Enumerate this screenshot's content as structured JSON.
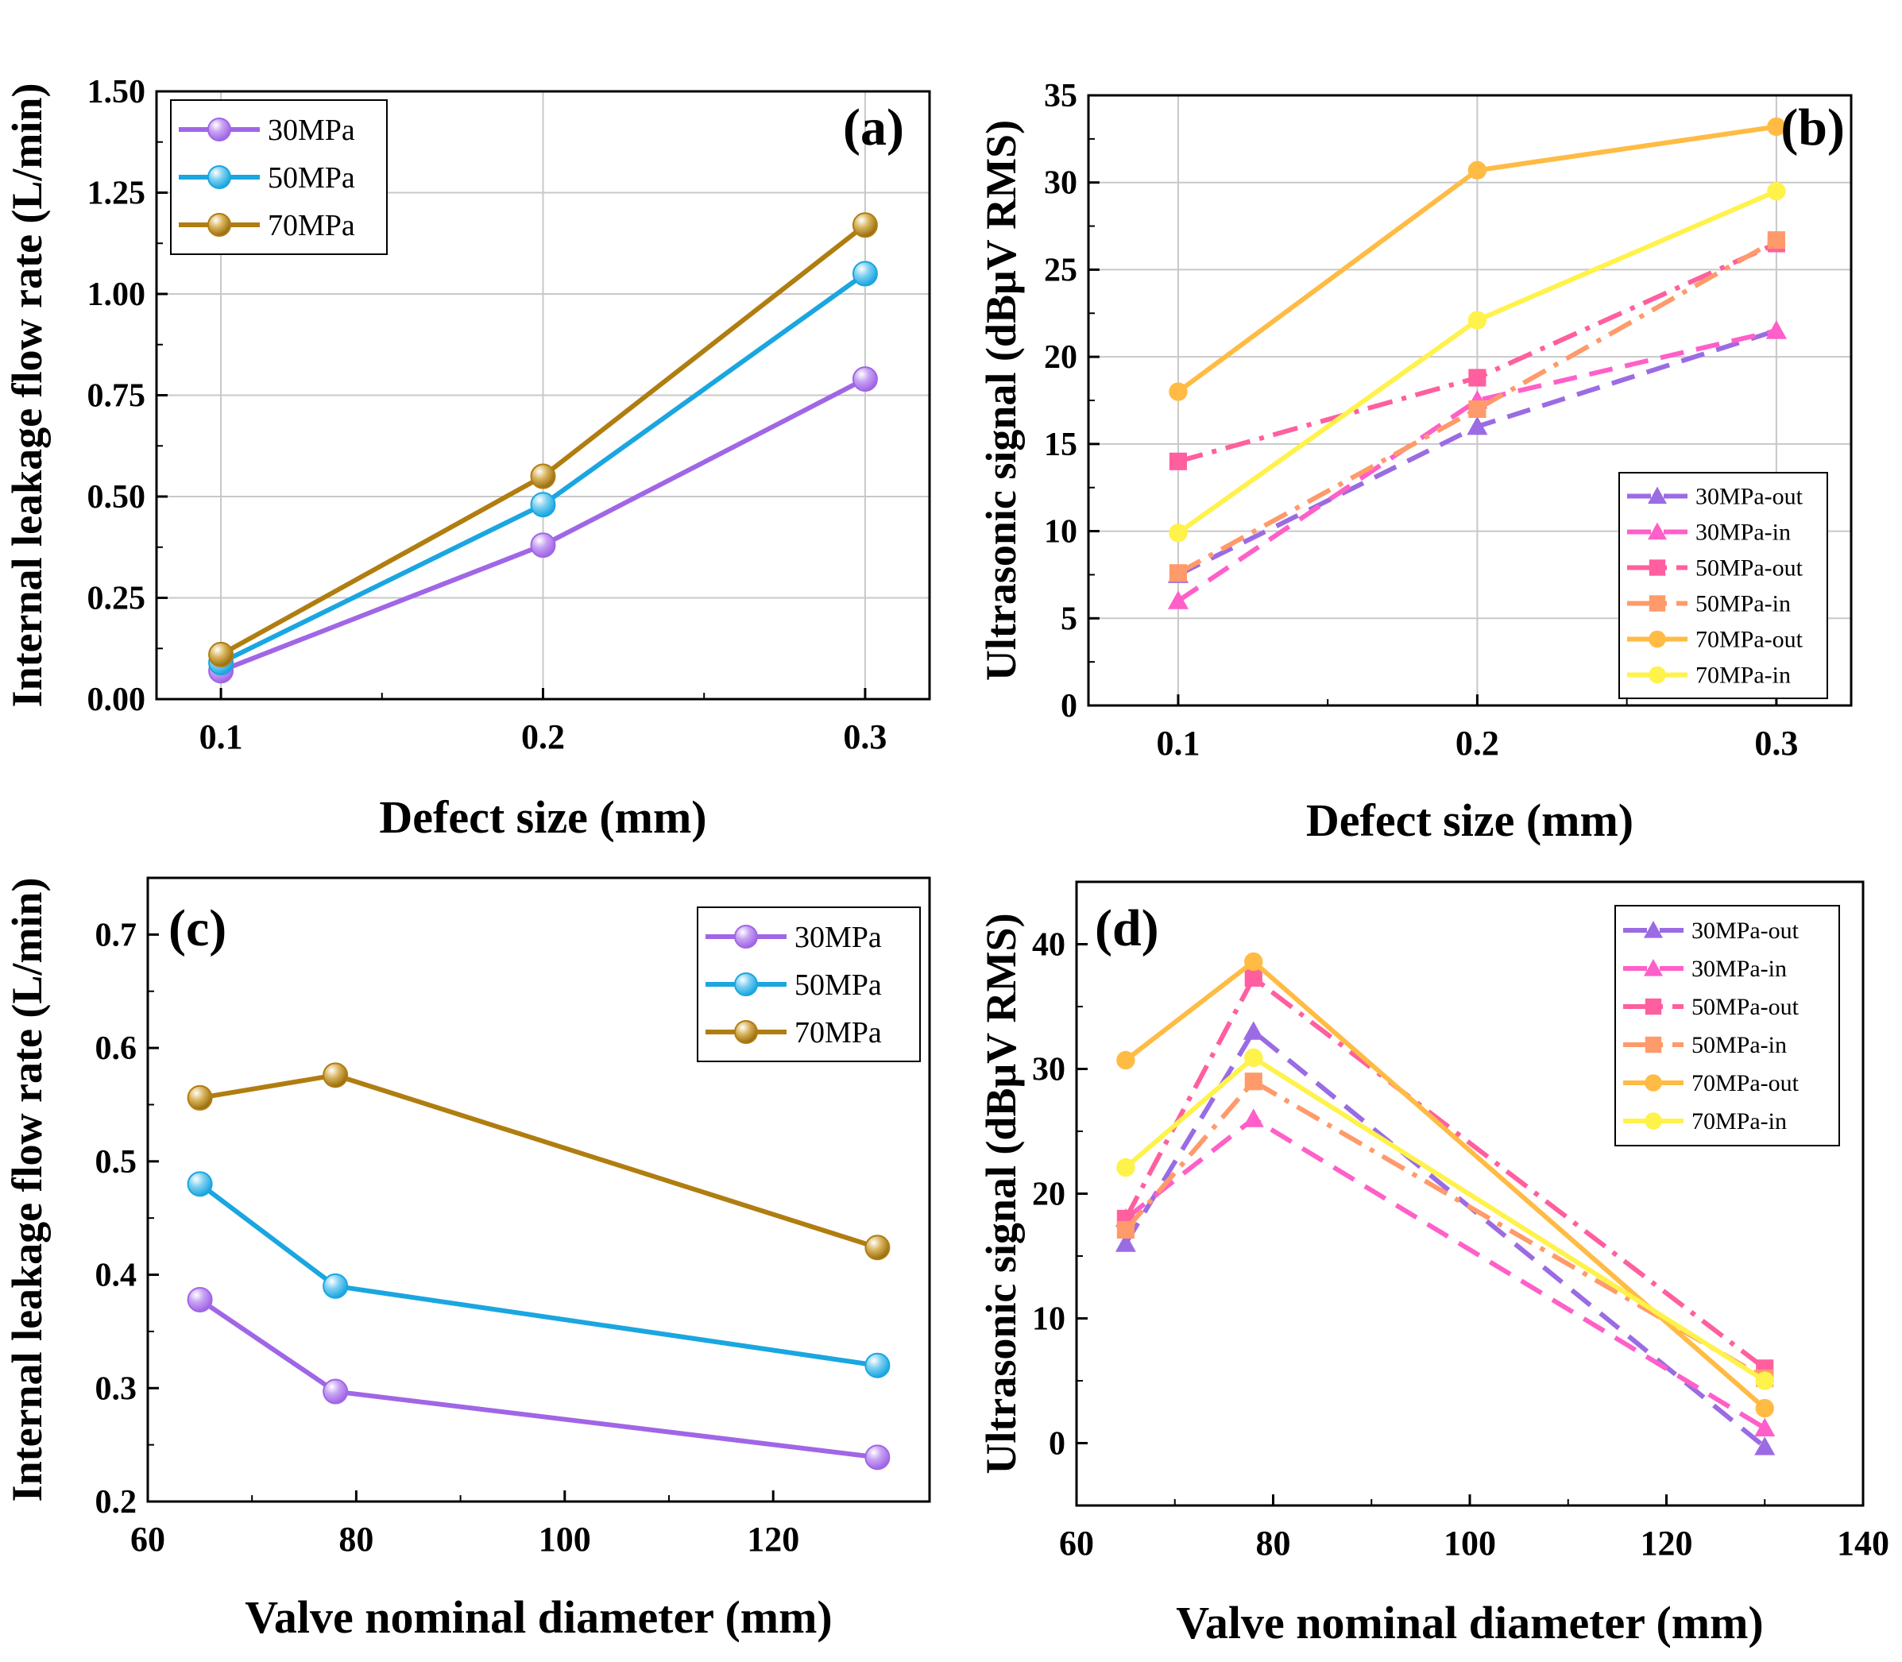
{
  "chart_data": [
    {
      "id": "a",
      "type": "line",
      "panel_label": "(a)",
      "title": "",
      "xlabel": "Defect size (mm)",
      "ylabel": "Internal leakage flow rate (L/min)",
      "x": [
        0.1,
        0.2,
        0.3
      ],
      "xlim": [
        0.08,
        0.32
      ],
      "ylim": [
        0.0,
        1.5
      ],
      "xticks": [
        0.1,
        0.2,
        0.3
      ],
      "xtick_labels": [
        "0.1",
        "0.2",
        "0.3"
      ],
      "yticks": [
        0.0,
        0.25,
        0.5,
        0.75,
        1.0,
        1.25,
        1.5
      ],
      "ytick_labels": [
        "0.00",
        "0.25",
        "0.50",
        "0.75",
        "1.00",
        "1.25",
        "1.50"
      ],
      "grid": true,
      "legend_position": "top-left",
      "series": [
        {
          "name": "30MPa",
          "values": [
            0.07,
            0.38,
            0.79
          ],
          "color": "#a066e6",
          "marker": "sphere",
          "dash": "solid"
        },
        {
          "name": "50MPa",
          "values": [
            0.09,
            0.48,
            1.05
          ],
          "color": "#1aa6e0",
          "marker": "sphere",
          "dash": "solid"
        },
        {
          "name": "70MPa",
          "values": [
            0.11,
            0.55,
            1.17
          ],
          "color": "#b07d10",
          "marker": "sphere",
          "dash": "solid"
        }
      ]
    },
    {
      "id": "b",
      "type": "line",
      "panel_label": "(b)",
      "title": "",
      "xlabel": "Defect size (mm)",
      "ylabel": "Ultrasonic signal (dBμV RMS)",
      "x": [
        0.1,
        0.2,
        0.3
      ],
      "xlim": [
        0.07,
        0.325
      ],
      "ylim": [
        0,
        35
      ],
      "xticks": [
        0.1,
        0.2,
        0.3
      ],
      "xtick_labels": [
        "0.1",
        "0.2",
        "0.3"
      ],
      "yticks": [
        0,
        5,
        10,
        15,
        20,
        25,
        30,
        35
      ],
      "ytick_labels": [
        "0",
        "5",
        "10",
        "15",
        "20",
        "25",
        "30",
        "35"
      ],
      "grid": true,
      "legend_position": "bottom-right",
      "series": [
        {
          "name": "30MPa-out",
          "values": [
            7.5,
            16.0,
            21.5
          ],
          "color": "#9b6be3",
          "marker": "triangle",
          "dash": "dash"
        },
        {
          "name": "30MPa-in",
          "values": [
            6.0,
            17.5,
            21.5
          ],
          "color": "#ff5fc8",
          "marker": "triangle",
          "dash": "dash"
        },
        {
          "name": "50MPa-out",
          "values": [
            14.0,
            18.8,
            26.5
          ],
          "color": "#ff5f9e",
          "marker": "square",
          "dash": "dashdot"
        },
        {
          "name": "50MPa-in",
          "values": [
            7.6,
            17.0,
            26.7
          ],
          "color": "#ff9a6a",
          "marker": "square",
          "dash": "dashdot"
        },
        {
          "name": "70MPa-out",
          "values": [
            18.0,
            30.7,
            33.2
          ],
          "color": "#ffbb44",
          "marker": "circle",
          "dash": "solid"
        },
        {
          "name": "70MPa-in",
          "values": [
            9.9,
            22.1,
            29.5
          ],
          "color": "#fff24a",
          "marker": "circle",
          "dash": "solid"
        }
      ]
    },
    {
      "id": "c",
      "type": "line",
      "panel_label": "(c)",
      "title": "",
      "xlabel": "Valve nominal diameter (mm)",
      "ylabel": "Internal leakage flow rate (L/min)",
      "x": [
        65,
        78,
        130
      ],
      "xlim": [
        60,
        135
      ],
      "ylim": [
        0.2,
        0.75
      ],
      "xticks": [
        60,
        80,
        100,
        120
      ],
      "xtick_labels": [
        "60",
        "80",
        "100",
        "120"
      ],
      "yticks": [
        0.2,
        0.3,
        0.4,
        0.5,
        0.6,
        0.7
      ],
      "ytick_labels": [
        "0.2",
        "0.3",
        "0.4",
        "0.5",
        "0.6",
        "0.7"
      ],
      "grid": false,
      "legend_position": "top-right",
      "series": [
        {
          "name": "30MPa",
          "values": [
            0.378,
            0.297,
            0.239
          ],
          "color": "#a066e6",
          "marker": "sphere",
          "dash": "solid"
        },
        {
          "name": "50MPa",
          "values": [
            0.48,
            0.39,
            0.32
          ],
          "color": "#1aa6e0",
          "marker": "sphere",
          "dash": "solid"
        },
        {
          "name": "70MPa",
          "values": [
            0.556,
            0.576,
            0.424
          ],
          "color": "#b07d10",
          "marker": "sphere",
          "dash": "solid"
        }
      ]
    },
    {
      "id": "d",
      "type": "line",
      "panel_label": "(d)",
      "title": "",
      "xlabel": "Valve nominal diameter (mm)",
      "ylabel": "Ultrasonic signal (dBμV RMS)",
      "x": [
        65,
        78,
        130
      ],
      "xlim": [
        60,
        140
      ],
      "ylim": [
        -5,
        45
      ],
      "xticks": [
        60,
        80,
        100,
        120,
        140
      ],
      "xtick_labels": [
        "60",
        "80",
        "100",
        "120",
        "140"
      ],
      "yticks": [
        0,
        10,
        20,
        30,
        40
      ],
      "ytick_labels": [
        "0",
        "10",
        "20",
        "30",
        "40"
      ],
      "grid": false,
      "legend_position": "top-right",
      "series": [
        {
          "name": "30MPa-out",
          "values": [
            16.0,
            33.0,
            -0.3
          ],
          "color": "#9b6be3",
          "marker": "triangle",
          "dash": "dash"
        },
        {
          "name": "30MPa-in",
          "values": [
            18.0,
            26.0,
            1.2
          ],
          "color": "#ff5fc8",
          "marker": "triangle",
          "dash": "dash"
        },
        {
          "name": "50MPa-out",
          "values": [
            18.0,
            37.3,
            6.0
          ],
          "color": "#ff5f9e",
          "marker": "square",
          "dash": "dashdot"
        },
        {
          "name": "50MPa-in",
          "values": [
            17.1,
            29.0,
            5.2
          ],
          "color": "#ff9a6a",
          "marker": "square",
          "dash": "dashdot"
        },
        {
          "name": "70MPa-out",
          "values": [
            30.7,
            38.6,
            2.8
          ],
          "color": "#ffbb44",
          "marker": "circle",
          "dash": "solid"
        },
        {
          "name": "70MPa-in",
          "values": [
            22.1,
            30.9,
            5.0
          ],
          "color": "#fff24a",
          "marker": "circle",
          "dash": "solid"
        }
      ]
    }
  ]
}
